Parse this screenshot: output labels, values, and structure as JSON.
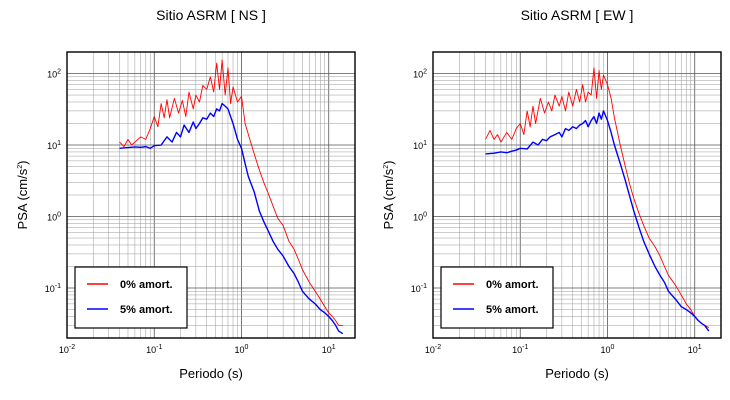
{
  "chart_data": [
    {
      "type": "line",
      "title": "Sitio ASRM [ NS ]",
      "xlabel": "Periodo (s)",
      "ylabel_base": "PSA (cm/s",
      "ylabel_exp": "2",
      "ylabel_close": ")",
      "x_scale": "log",
      "y_scale": "log",
      "xlim": [
        0.01,
        20
      ],
      "ylim": [
        0.02,
        200
      ],
      "grid": true,
      "legend_position": "bottom-left",
      "x_ticks": [
        {
          "base": "10",
          "exp": "-2"
        },
        {
          "base": "10",
          "exp": "-1"
        },
        {
          "base": "10",
          "exp": "0"
        },
        {
          "base": "10",
          "exp": "1"
        }
      ],
      "y_ticks": [
        {
          "base": "10",
          "exp": "-1"
        },
        {
          "base": "10",
          "exp": "0"
        },
        {
          "base": "10",
          "exp": "1"
        },
        {
          "base": "10",
          "exp": "2"
        }
      ],
      "series": [
        {
          "name": "0% amort.",
          "color": "#ff0000",
          "x": [
            0.04,
            0.045,
            0.05,
            0.055,
            0.06,
            0.07,
            0.08,
            0.09,
            0.1,
            0.11,
            0.12,
            0.13,
            0.14,
            0.15,
            0.17,
            0.19,
            0.21,
            0.23,
            0.25,
            0.28,
            0.3,
            0.33,
            0.36,
            0.4,
            0.44,
            0.48,
            0.52,
            0.56,
            0.6,
            0.65,
            0.7,
            0.75,
            0.8,
            0.9,
            1.0,
            1.1,
            1.2,
            1.4,
            1.6,
            1.8,
            2.0,
            2.3,
            2.6,
            3.0,
            3.5,
            4.0,
            4.5,
            5.0,
            6.0,
            7.0,
            8.0,
            9.0,
            10.0,
            11.0,
            12.0,
            13.0,
            14.5
          ],
          "y": [
            11,
            9.5,
            12,
            10,
            11,
            13,
            12,
            17,
            25,
            18,
            38,
            24,
            43,
            24,
            45,
            28,
            42,
            25,
            55,
            32,
            50,
            40,
            68,
            60,
            90,
            55,
            140,
            60,
            155,
            50,
            120,
            38,
            65,
            40,
            48,
            20,
            14,
            7.5,
            4.5,
            3.0,
            2.2,
            1.4,
            0.95,
            0.75,
            0.45,
            0.35,
            0.25,
            0.18,
            0.12,
            0.09,
            0.07,
            0.055,
            0.045,
            0.04,
            0.035,
            0.03,
            0.03
          ]
        },
        {
          "name": "5% amort.",
          "color": "#0000ff",
          "x": [
            0.04,
            0.05,
            0.06,
            0.07,
            0.08,
            0.09,
            0.1,
            0.12,
            0.14,
            0.16,
            0.18,
            0.2,
            0.22,
            0.25,
            0.28,
            0.3,
            0.33,
            0.36,
            0.4,
            0.44,
            0.48,
            0.52,
            0.56,
            0.6,
            0.65,
            0.7,
            0.75,
            0.8,
            0.9,
            1.0,
            1.1,
            1.2,
            1.4,
            1.6,
            1.8,
            2.0,
            2.3,
            2.6,
            3.0,
            3.5,
            4.0,
            4.5,
            5.0,
            6.0,
            7.0,
            8.0,
            9.0,
            10.0,
            11.0,
            12.0,
            13.0,
            14.5
          ],
          "y": [
            9,
            9.2,
            9.4,
            9.3,
            9.5,
            9.0,
            9.8,
            10,
            13,
            11,
            15,
            13,
            19,
            15,
            21,
            17,
            20,
            24,
            23,
            28,
            25,
            32,
            30,
            38,
            35,
            32,
            25,
            20,
            12,
            9,
            5.5,
            3.6,
            2.2,
            1.2,
            0.85,
            0.65,
            0.45,
            0.35,
            0.28,
            0.2,
            0.16,
            0.12,
            0.09,
            0.07,
            0.06,
            0.05,
            0.045,
            0.04,
            0.035,
            0.03,
            0.025,
            0.023
          ]
        }
      ]
    },
    {
      "type": "line",
      "title": "Sitio ASRM [ EW ]",
      "xlabel": "Periodo (s)",
      "ylabel_base": "PSA (cm/s",
      "ylabel_exp": "2",
      "ylabel_close": ")",
      "x_scale": "log",
      "y_scale": "log",
      "xlim": [
        0.01,
        20
      ],
      "ylim": [
        0.02,
        200
      ],
      "grid": true,
      "legend_position": "bottom-left",
      "x_ticks": [
        {
          "base": "10",
          "exp": "-2"
        },
        {
          "base": "10",
          "exp": "-1"
        },
        {
          "base": "10",
          "exp": "0"
        },
        {
          "base": "10",
          "exp": "1"
        }
      ],
      "y_ticks": [
        {
          "base": "10",
          "exp": "-1"
        },
        {
          "base": "10",
          "exp": "0"
        },
        {
          "base": "10",
          "exp": "1"
        },
        {
          "base": "10",
          "exp": "2"
        }
      ],
      "series": [
        {
          "name": "0% amort.",
          "color": "#ff0000",
          "x": [
            0.04,
            0.045,
            0.05,
            0.055,
            0.06,
            0.07,
            0.08,
            0.09,
            0.1,
            0.11,
            0.12,
            0.13,
            0.14,
            0.15,
            0.17,
            0.19,
            0.21,
            0.23,
            0.25,
            0.28,
            0.3,
            0.33,
            0.36,
            0.4,
            0.44,
            0.48,
            0.52,
            0.56,
            0.6,
            0.65,
            0.7,
            0.75,
            0.8,
            0.85,
            0.9,
            1.0,
            1.1,
            1.2,
            1.4,
            1.6,
            1.8,
            2.0,
            2.3,
            2.6,
            3.0,
            3.5,
            4.0,
            4.5,
            5.0,
            6.0,
            7.0,
            8.0,
            9.0,
            10.0,
            11.0,
            12.0,
            13.0,
            14.5
          ],
          "y": [
            12,
            16,
            12,
            14,
            11,
            15,
            12,
            17,
            20,
            14,
            30,
            18,
            35,
            20,
            45,
            28,
            40,
            30,
            50,
            35,
            48,
            30,
            55,
            35,
            60,
            40,
            70,
            40,
            55,
            50,
            120,
            45,
            110,
            60,
            95,
            70,
            45,
            24,
            10,
            5.0,
            2.8,
            1.8,
            1.1,
            0.75,
            0.5,
            0.38,
            0.28,
            0.2,
            0.15,
            0.11,
            0.08,
            0.06,
            0.05,
            0.04,
            0.035,
            0.032,
            0.03,
            0.028
          ]
        },
        {
          "name": "5% amort.",
          "color": "#0000ff",
          "x": [
            0.04,
            0.05,
            0.06,
            0.07,
            0.08,
            0.09,
            0.1,
            0.12,
            0.14,
            0.16,
            0.18,
            0.2,
            0.22,
            0.25,
            0.28,
            0.3,
            0.33,
            0.36,
            0.4,
            0.44,
            0.48,
            0.52,
            0.56,
            0.6,
            0.65,
            0.7,
            0.75,
            0.8,
            0.85,
            0.9,
            1.0,
            1.1,
            1.2,
            1.4,
            1.6,
            1.8,
            2.0,
            2.3,
            2.6,
            3.0,
            3.5,
            4.0,
            4.5,
            5.0,
            6.0,
            7.0,
            8.0,
            9.0,
            10.0,
            11.0,
            12.0,
            13.0,
            14.5
          ],
          "y": [
            7.5,
            7.7,
            8.0,
            7.8,
            8.2,
            8.5,
            9.0,
            8.8,
            11,
            10,
            12,
            11.5,
            13,
            14,
            15,
            13,
            17,
            16,
            18,
            17,
            19,
            20,
            22,
            18,
            22,
            25,
            20,
            28,
            23,
            30,
            22,
            15,
            10,
            5.5,
            3.2,
            1.9,
            1.2,
            0.7,
            0.45,
            0.3,
            0.2,
            0.15,
            0.12,
            0.09,
            0.07,
            0.055,
            0.05,
            0.045,
            0.04,
            0.035,
            0.032,
            0.03,
            0.025
          ]
        }
      ]
    }
  ]
}
